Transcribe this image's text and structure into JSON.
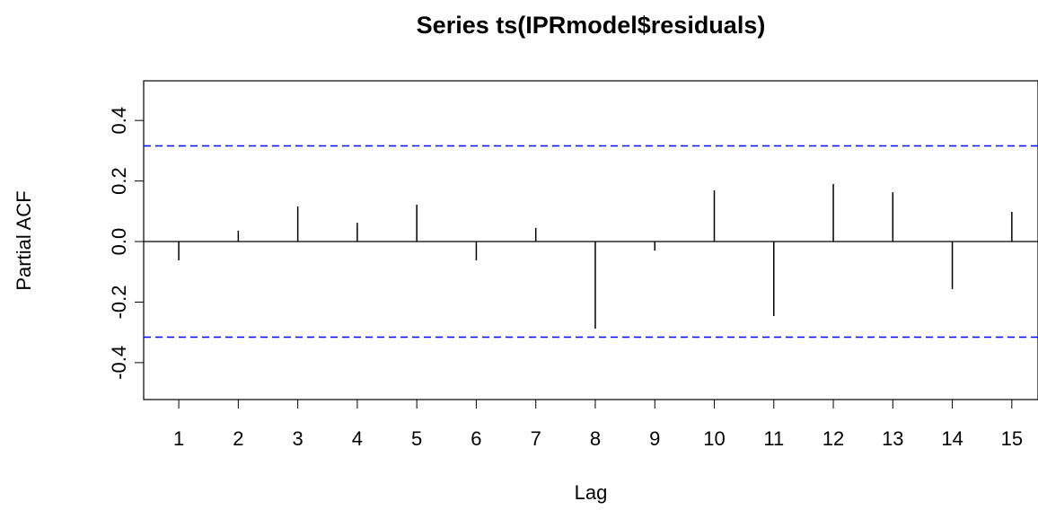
{
  "chart_data": {
    "type": "pacf",
    "title": "Series  ts(IPRmodel$residuals)",
    "x_label": "Lag",
    "y_label": "Partial ACF",
    "x": [
      1,
      2,
      3,
      4,
      5,
      6,
      7,
      8,
      9,
      10,
      11,
      12,
      13,
      14,
      15
    ],
    "values": [
      -0.062,
      0.036,
      0.116,
      0.062,
      0.122,
      -0.062,
      0.045,
      -0.288,
      -0.03,
      0.169,
      -0.246,
      0.19,
      0.163,
      -0.157,
      0.098
    ],
    "color": "#000000",
    "confidence_bounds": [
      -0.316,
      0.316
    ],
    "confidence_color": "#0000ff",
    "xlim": [
      0.41,
      15.44
    ],
    "xticks": [
      1,
      2,
      3,
      4,
      5,
      6,
      7,
      8,
      9,
      10,
      11,
      12,
      13,
      14,
      15
    ],
    "ylim": [
      -0.522,
      0.531
    ],
    "yticks": [
      -0.4,
      -0.2,
      {
        "value": 0,
        "label": "0.0"
      },
      0.2,
      0.4
    ]
  }
}
